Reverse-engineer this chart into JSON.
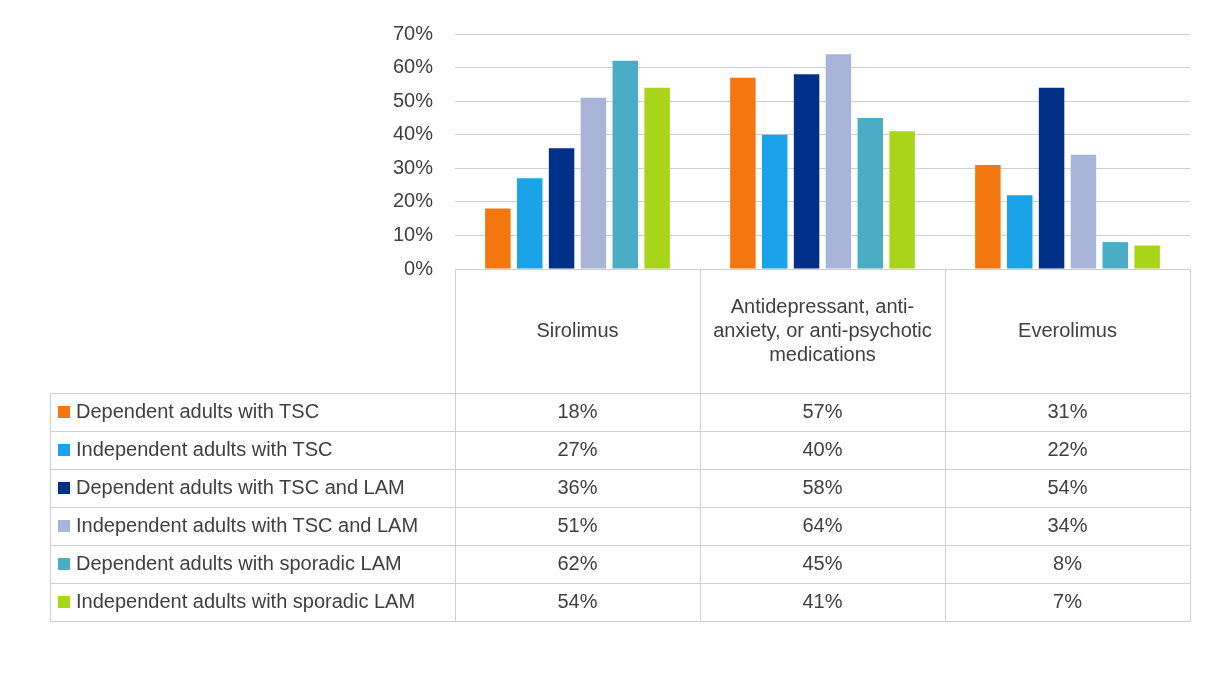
{
  "chart_data": {
    "type": "bar",
    "categories": [
      "Sirolimus",
      "Antidepressant, anti-anxiety, or anti-psychotic medications",
      "Everolimus"
    ],
    "series": [
      {
        "name": "Dependent adults with TSC",
        "color": "#f4760f",
        "values": [
          18,
          57,
          31
        ],
        "value_labels": [
          "18%",
          "57%",
          "31%"
        ]
      },
      {
        "name": "Independent adults with TSC",
        "color": "#1aa3e8",
        "values": [
          27,
          40,
          22
        ],
        "value_labels": [
          "27%",
          "40%",
          "22%"
        ]
      },
      {
        "name": "Dependent adults with TSC and LAM",
        "color": "#003087",
        "values": [
          36,
          58,
          54
        ],
        "value_labels": [
          "36%",
          "58%",
          "54%"
        ]
      },
      {
        "name": "Independent adults with TSC and LAM",
        "color": "#a9b4d9",
        "values": [
          51,
          64,
          34
        ],
        "value_labels": [
          "51%",
          "64%",
          "34%"
        ]
      },
      {
        "name": "Dependent adults with sporadic LAM",
        "color": "#4bacc6",
        "values": [
          62,
          45,
          8
        ],
        "value_labels": [
          "62%",
          "45%",
          "8%"
        ]
      },
      {
        "name": "Independent adults with sporadic LAM",
        "color": "#a8d51a",
        "values": [
          54,
          41,
          7
        ],
        "value_labels": [
          "54%",
          "41%",
          "7%"
        ]
      }
    ],
    "ylim": [
      0,
      70
    ],
    "yticks": [
      {
        "value": 0,
        "label": "0%"
      },
      {
        "value": 10,
        "label": "10%"
      },
      {
        "value": 20,
        "label": "20%"
      },
      {
        "value": 30,
        "label": "30%"
      },
      {
        "value": 40,
        "label": "40%"
      },
      {
        "value": 50,
        "label": "50%"
      },
      {
        "value": 60,
        "label": "60%"
      },
      {
        "value": 70,
        "label": "70%"
      }
    ],
    "grid": "y",
    "legend": "bottom"
  }
}
